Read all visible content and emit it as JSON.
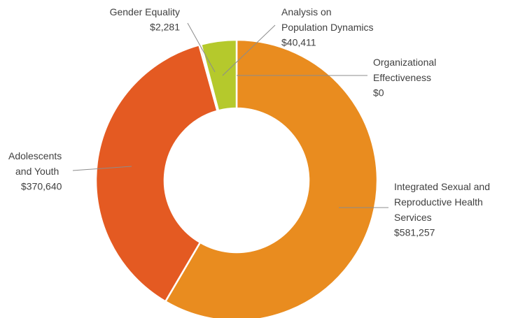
{
  "chart_data": {
    "type": "pie",
    "categories": [
      "Organizational Effectiveness",
      "Integrated Sexual and Reproductive Health Services",
      "Adolescents and Youth",
      "Gender Equality",
      "Analysis on Population Dynamics"
    ],
    "values": [
      0,
      581257,
      370640,
      2281,
      40411
    ],
    "value_labels": [
      "$0",
      "$581,257",
      "$370,640",
      "$2,281",
      "$40,411"
    ],
    "colors": [
      "#9e9e9e",
      "#e98c1f",
      "#e45a22",
      "#e87a2a",
      "#b5c92c"
    ]
  }
}
